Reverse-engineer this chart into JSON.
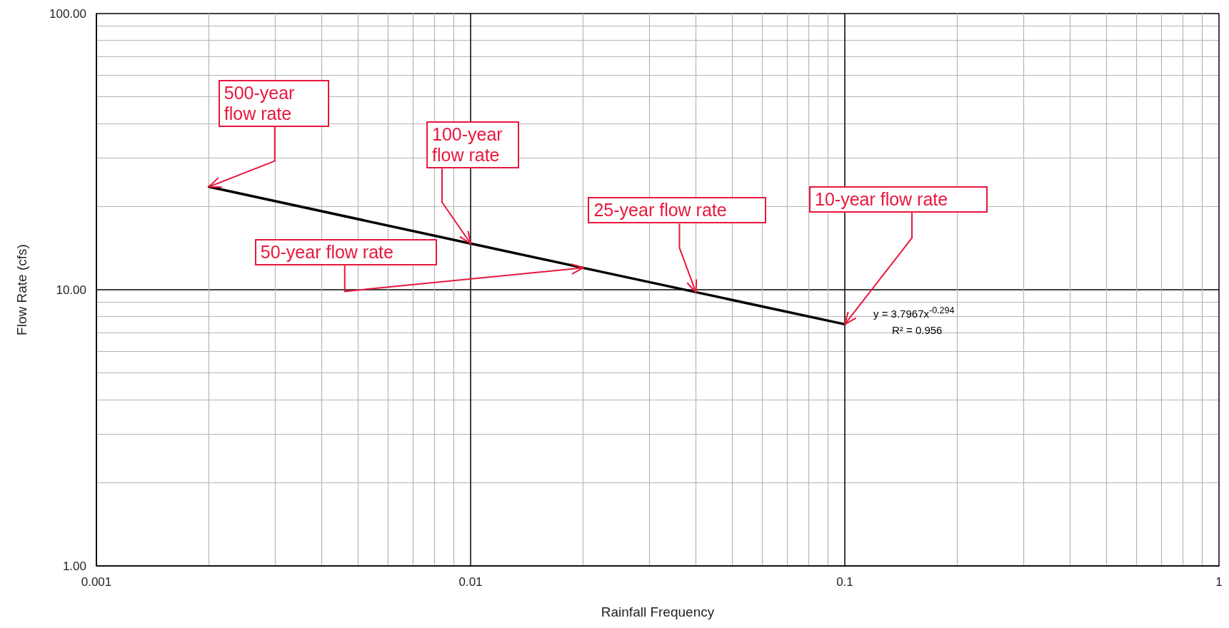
{
  "chart_data": {
    "type": "line",
    "xlabel": "Rainfall Frequency",
    "ylabel": "Flow Rate (cfs)",
    "log": "xy",
    "grid": true,
    "marker": "none",
    "line_style": "solid",
    "xlim": [
      0.001,
      1
    ],
    "xticks": [
      0.001,
      0.01,
      0.1,
      1
    ],
    "ylim": [
      1,
      100
    ],
    "yticks": [
      {
        "value": 1,
        "label": "1.00"
      },
      {
        "value": 10,
        "label": "10.00"
      },
      {
        "value": 100,
        "label": "100.00"
      }
    ],
    "series": [
      {
        "color": "#000000",
        "x": [
          0.002,
          0.01,
          0.02,
          0.04,
          0.1
        ],
        "values": [
          23.6,
          14.7,
          12.0,
          9.8,
          7.5
        ]
      }
    ],
    "annotations": [
      {
        "text": "500-year flow rate",
        "x": 0.002,
        "y": 23.6
      },
      {
        "text": "100-year flow rate",
        "x": 0.01,
        "y": 14.7
      },
      {
        "text": "50-year flow rate",
        "x": 0.02,
        "y": 12.0
      },
      {
        "text": "25-year flow rate",
        "x": 0.04,
        "y": 9.8
      },
      {
        "text": "10-year flow rate",
        "x": 0.1,
        "y": 7.5
      },
      "y = 3.7967x$^{-0.294}$",
      "R² = 0.956"
    ]
  }
}
